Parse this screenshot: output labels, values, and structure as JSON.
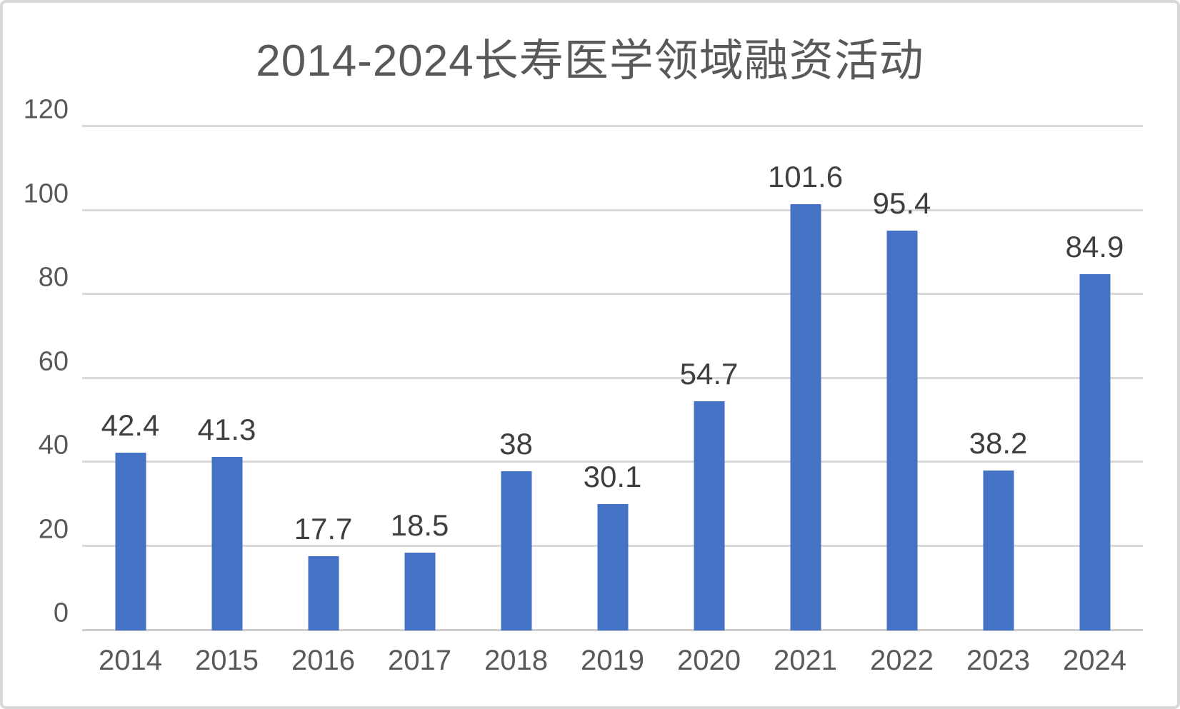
{
  "chart_data": {
    "type": "bar",
    "title": "2014-2024长寿医学领域融资活动",
    "categories": [
      "2014",
      "2015",
      "2016",
      "2017",
      "2018",
      "2019",
      "2020",
      "2021",
      "2022",
      "2023",
      "2024"
    ],
    "values": [
      42.4,
      41.3,
      17.7,
      18.5,
      38,
      30.1,
      54.7,
      101.6,
      95.4,
      38.2,
      84.9
    ],
    "data_labels": [
      "42.4",
      "41.3",
      "17.7",
      "18.5",
      "38",
      "30.1",
      "54.7",
      "101.6",
      "95.4",
      "38.2",
      "84.9"
    ],
    "xlabel": "",
    "ylabel": "",
    "ylim": [
      0,
      120
    ],
    "yticks": [
      0,
      20,
      40,
      60,
      80,
      100,
      120
    ],
    "grid": true,
    "legend": false,
    "bar_color": "#4472c4",
    "gridline_color": "#d9d9d9",
    "axis_line_color": "#d0cece",
    "title_color": "#595959",
    "tick_label_color": "#595959",
    "data_label_color": "#3f3f3f"
  }
}
